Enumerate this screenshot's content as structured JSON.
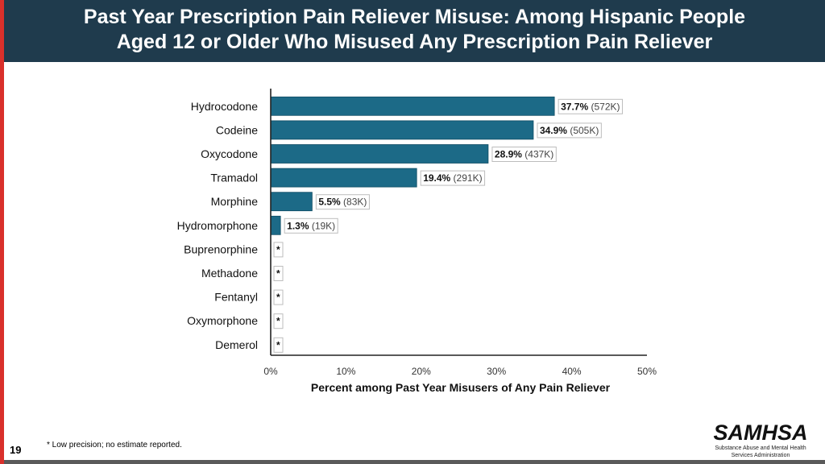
{
  "page": {
    "title_line1": "Past Year Prescription Pain Reliever Misuse: Among Hispanic People",
    "title_line2": "Aged 12 or Older Who Misused Any Prescription Pain Reliever",
    "footnote": "* Low precision; no estimate reported.",
    "page_number": "19",
    "logo_text": "SAMHSA",
    "logo_subtitle_line1": "Substance Abuse and Mental Health",
    "logo_subtitle_line2": "Services Administration"
  },
  "colors": {
    "header_bg": "#1f3b4d",
    "accent_bar": "#d9302b",
    "bar_fill": "#1c6a87",
    "axis": "#222222"
  },
  "chart_data": {
    "type": "bar",
    "orientation": "horizontal",
    "categories": [
      "Hydrocodone",
      "Codeine",
      "Oxycodone",
      "Tramadol",
      "Morphine",
      "Hydromorphone",
      "Buprenorphine",
      "Methadone",
      "Fentanyl",
      "Oxymorphone",
      "Demerol"
    ],
    "values": [
      37.7,
      34.9,
      28.9,
      19.4,
      5.5,
      1.3,
      null,
      null,
      null,
      null,
      null
    ],
    "data_labels": [
      "37.7%",
      "34.9%",
      "28.9%",
      "19.4%",
      "5.5%",
      "1.3%",
      "*",
      "*",
      "*",
      "*",
      "*"
    ],
    "counts": [
      "(572K)",
      "(505K)",
      "(437K)",
      "(291K)",
      "(83K)",
      "(19K)",
      "",
      "",
      "",
      "",
      ""
    ],
    "xlabel": "Percent among Past Year Misusers of Any Pain Reliever",
    "xlim": [
      0,
      50
    ],
    "xticks": [
      "0%",
      "10%",
      "20%",
      "30%",
      "40%",
      "50%"
    ],
    "grid": false
  }
}
